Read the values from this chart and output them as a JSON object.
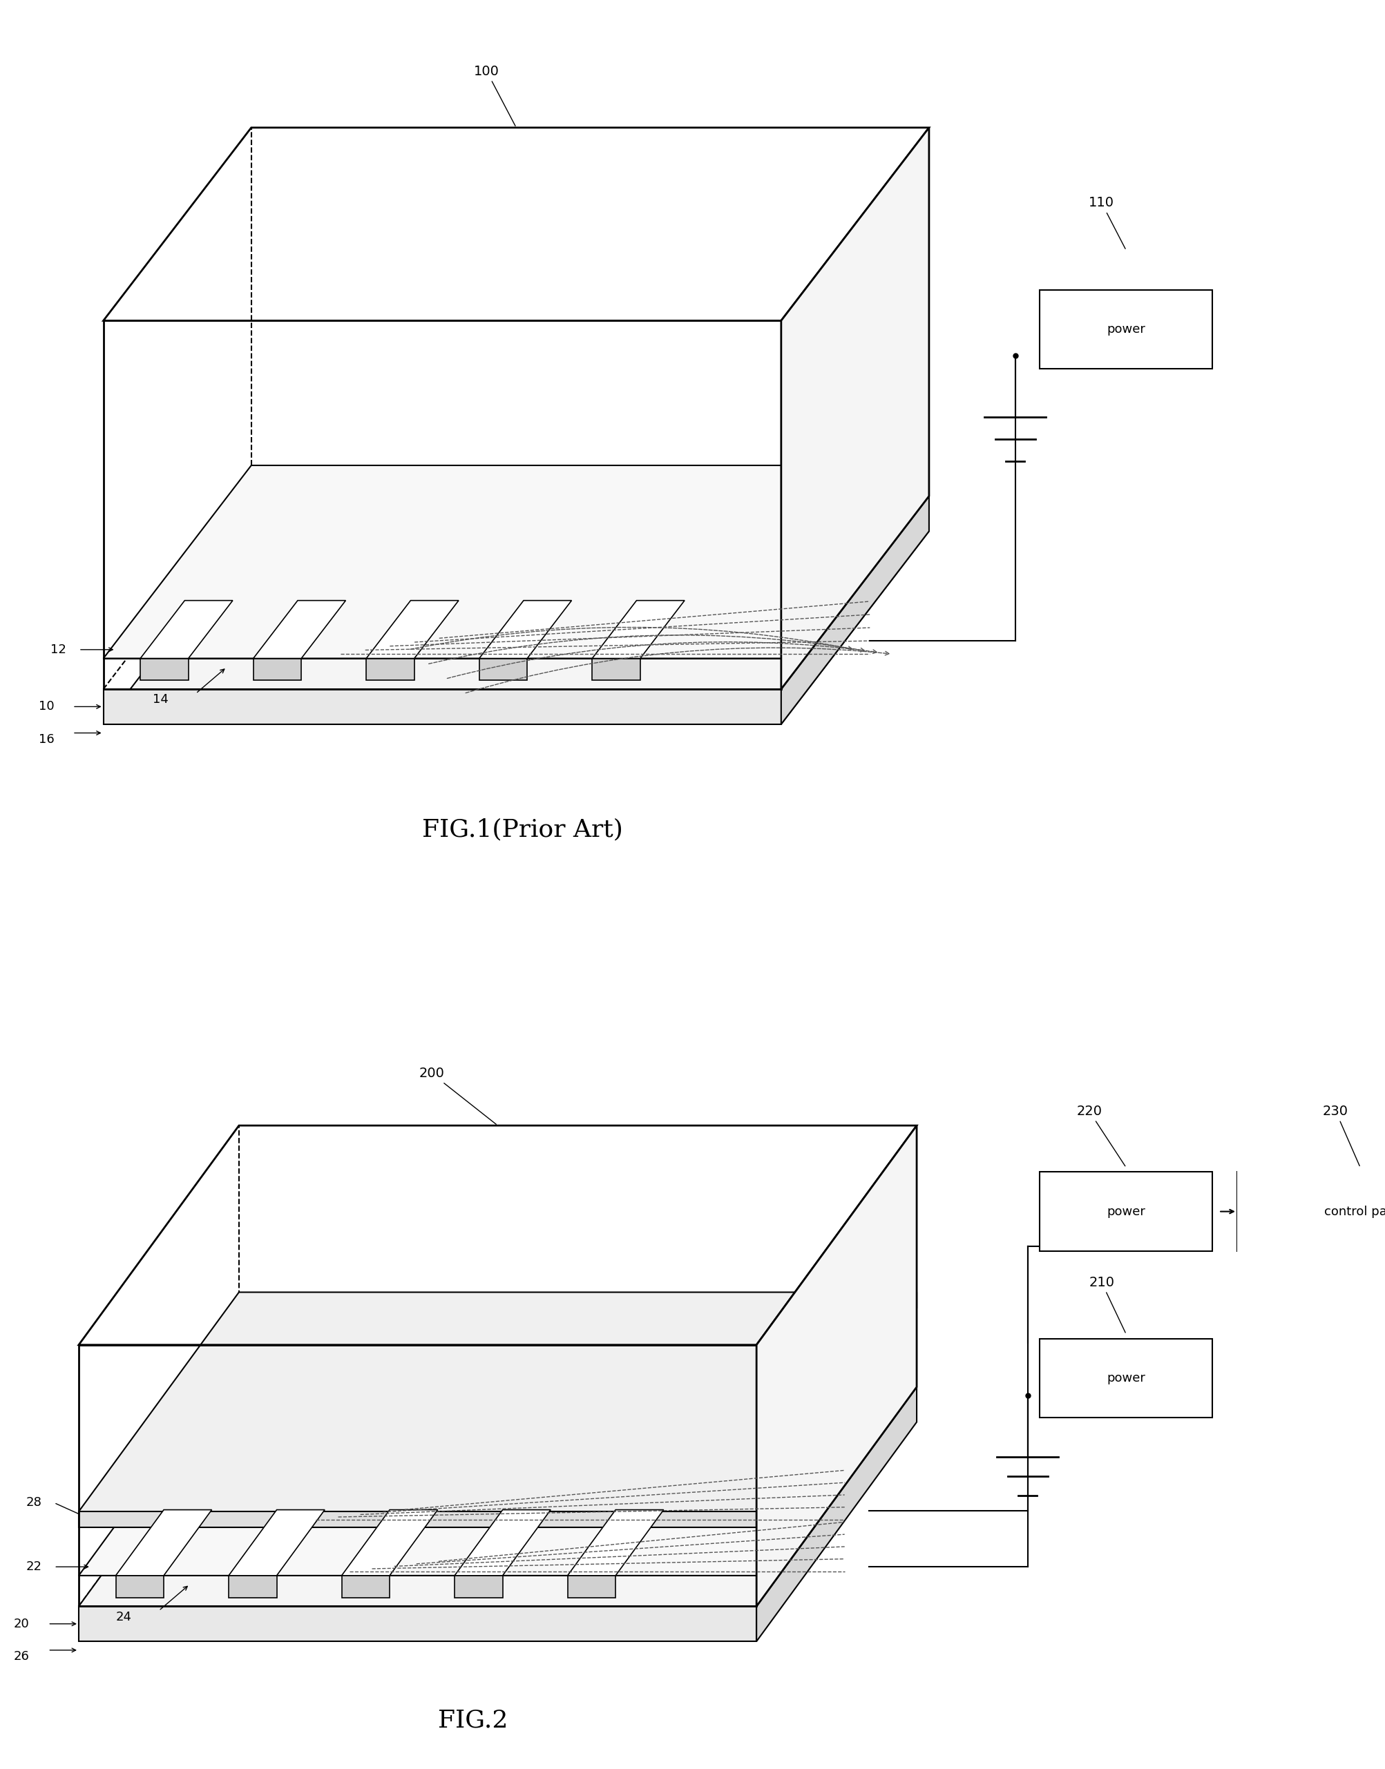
{
  "fig_width": 20.06,
  "fig_height": 25.62,
  "bg_color": "#ffffff",
  "line_color": "#000000",
  "dashed_color": "#555555",
  "fig1": {
    "title": "FIG.1(Prior Art)",
    "label_100": "100",
    "label_110": "110",
    "label_12": "12",
    "label_14": "14",
    "label_10": "10",
    "label_16": "16",
    "power_text": "power"
  },
  "fig2": {
    "title": "FIG.2",
    "label_200": "200",
    "label_210": "210",
    "label_220": "220",
    "label_230": "230",
    "label_22": "22",
    "label_24": "24",
    "label_20": "20",
    "label_26": "26",
    "label_28": "28",
    "power_text": "power",
    "control_text": "control part"
  }
}
